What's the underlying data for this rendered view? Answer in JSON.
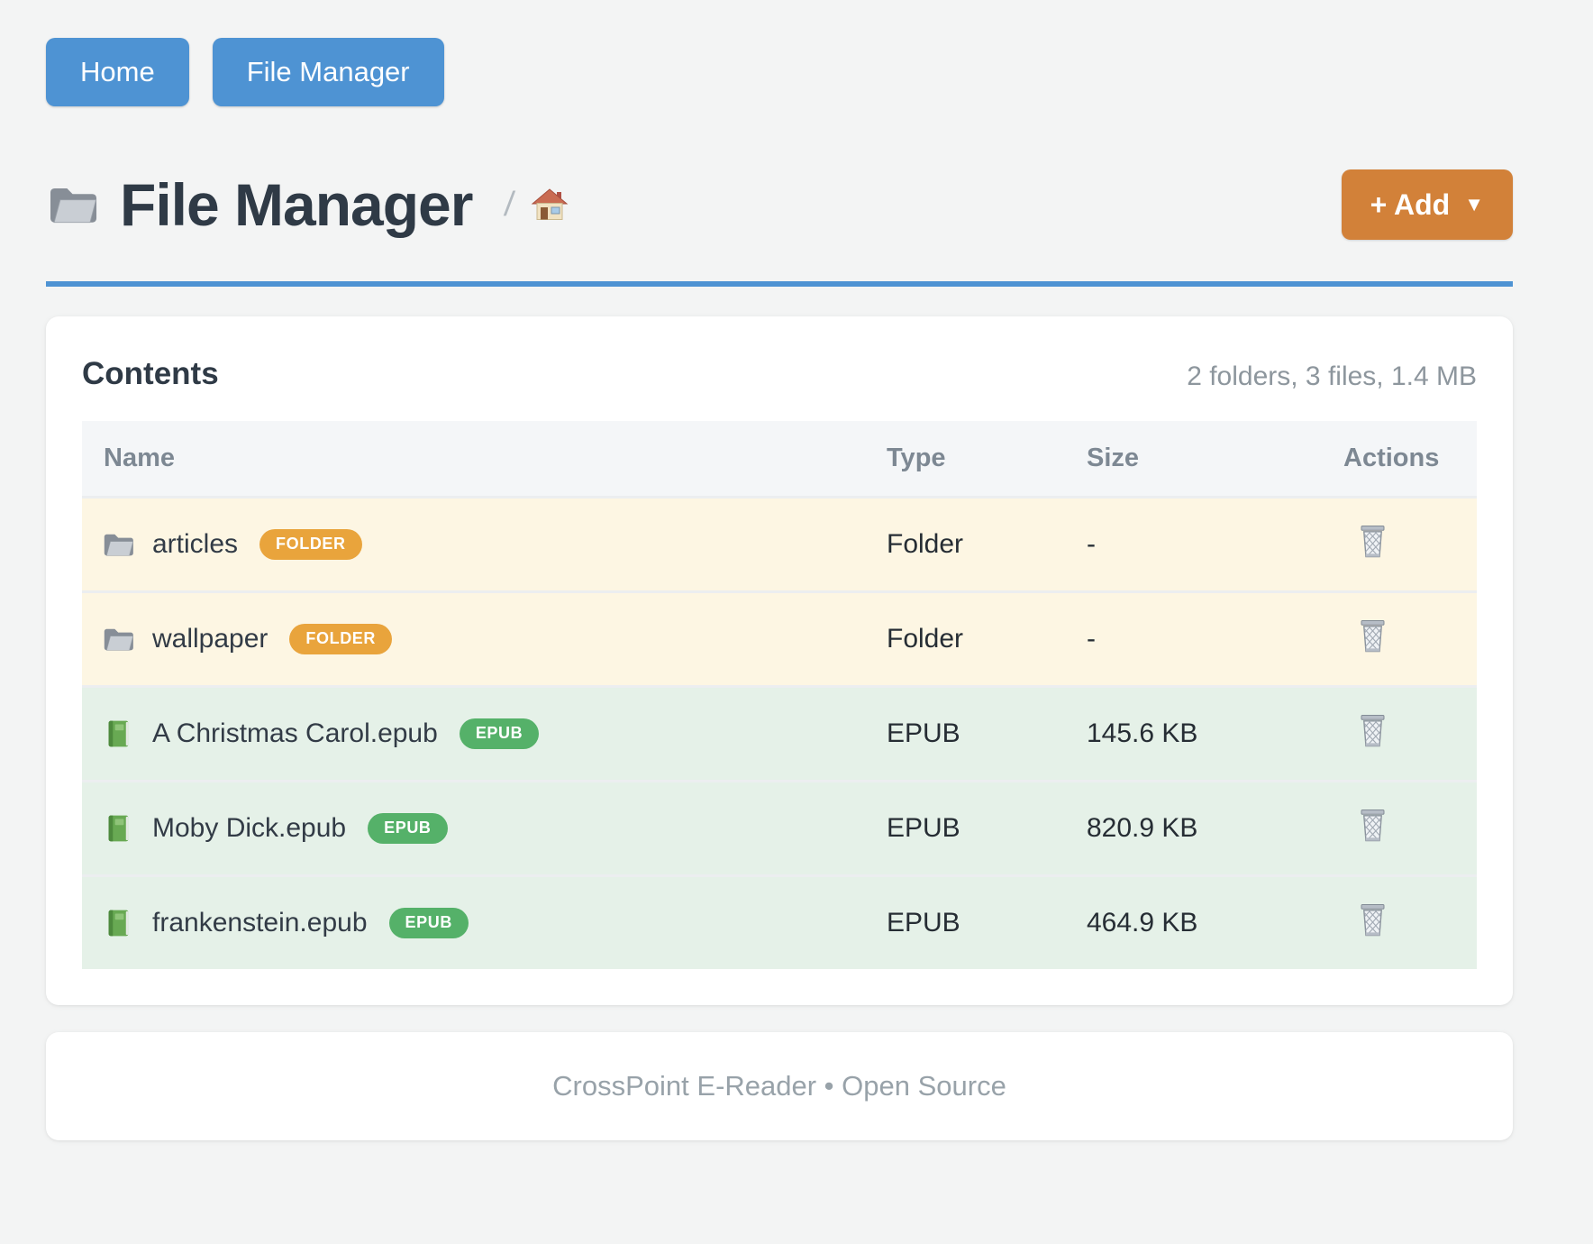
{
  "nav": {
    "home_label": "Home",
    "file_manager_label": "File Manager"
  },
  "header": {
    "title": "File Manager",
    "title_icon": "folder-icon",
    "breadcrumb_separator": "/",
    "breadcrumb_home_icon": "house-icon",
    "add_button": {
      "label": "+ Add",
      "caret": "▼"
    }
  },
  "contents": {
    "heading": "Contents",
    "summary": "2 folders, 3 files, 1.4 MB",
    "columns": [
      "Name",
      "Type",
      "Size",
      "Actions"
    ],
    "rows": [
      {
        "name": "articles",
        "icon": "folder-icon",
        "badge": "FOLDER",
        "kind": "folder",
        "type": "Folder",
        "size": "-",
        "action_icon": "trash-icon"
      },
      {
        "name": "wallpaper",
        "icon": "folder-icon",
        "badge": "FOLDER",
        "kind": "folder",
        "type": "Folder",
        "size": "-",
        "action_icon": "trash-icon"
      },
      {
        "name": "A Christmas Carol.epub",
        "icon": "book-icon",
        "badge": "EPUB",
        "kind": "epub",
        "type": "EPUB",
        "size": "145.6 KB",
        "action_icon": "trash-icon"
      },
      {
        "name": "Moby Dick.epub",
        "icon": "book-icon",
        "badge": "EPUB",
        "kind": "epub",
        "type": "EPUB",
        "size": "820.9 KB",
        "action_icon": "trash-icon"
      },
      {
        "name": "frankenstein.epub",
        "icon": "book-icon",
        "badge": "EPUB",
        "kind": "epub",
        "type": "EPUB",
        "size": "464.9 KB",
        "action_icon": "trash-icon"
      }
    ]
  },
  "footer": {
    "text": "CrossPoint E-Reader • Open Source"
  },
  "colors": {
    "accent_blue": "#4e93d3",
    "add_orange": "#d28139",
    "folder_badge": "#e9a43c",
    "epub_badge": "#55b169",
    "folder_row_bg": "#fdf6e3",
    "epub_row_bg": "#e5f1e8"
  }
}
